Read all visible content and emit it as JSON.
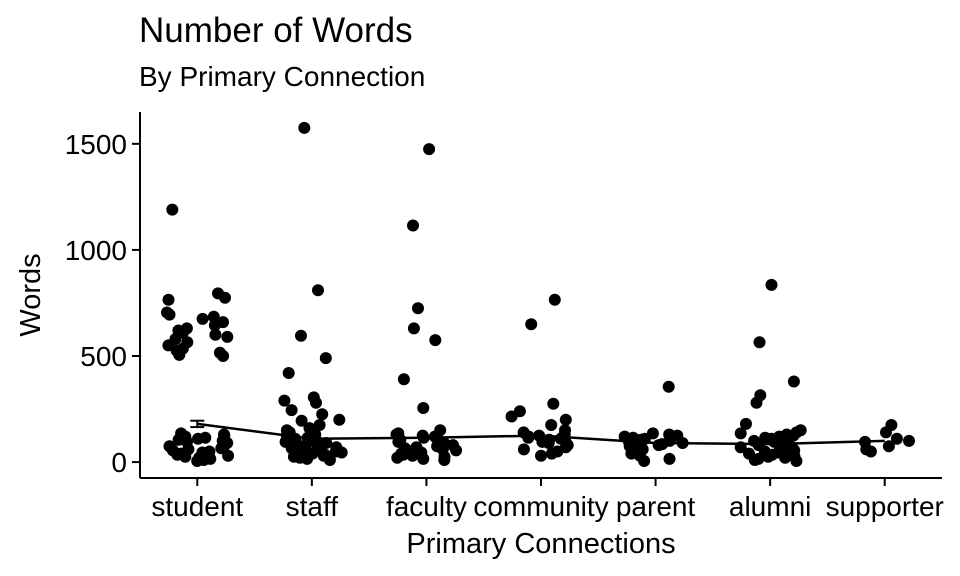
{
  "chart_data": {
    "type": "scatter",
    "title": "Number of Words",
    "subtitle": "By Primary Connection",
    "xlabel": "Primary Connections",
    "ylabel": "Words",
    "categories": [
      "student",
      "staff",
      "faculty",
      "community",
      "parent",
      "alumni",
      "supporter"
    ],
    "yticks": [
      0,
      500,
      1000,
      1500
    ],
    "ylim": [
      -75,
      1650
    ],
    "grid": false,
    "legend": "none",
    "mean_line": [
      180,
      110,
      115,
      125,
      90,
      85,
      100
    ],
    "mean_error": [
      15,
      0,
      0,
      0,
      0,
      0,
      0
    ],
    "points": {
      "student": [
        1190,
        795,
        775,
        765,
        705,
        695,
        685,
        675,
        660,
        645,
        630,
        620,
        610,
        600,
        590,
        580,
        565,
        550,
        535,
        525,
        515,
        505,
        500,
        135,
        130,
        125,
        120,
        115,
        110,
        105,
        100,
        95,
        90,
        85,
        80,
        75,
        70,
        65,
        60,
        55,
        50,
        45,
        40,
        35,
        30,
        25,
        20,
        15,
        10,
        5
      ],
      "staff": [
        1575,
        810,
        595,
        490,
        420,
        305,
        290,
        280,
        245,
        225,
        200,
        195,
        175,
        160,
        150,
        140,
        130,
        125,
        120,
        115,
        110,
        105,
        100,
        95,
        90,
        85,
        80,
        75,
        70,
        65,
        60,
        55,
        50,
        45,
        40,
        35,
        30,
        25,
        20,
        15,
        10
      ],
      "faculty": [
        1475,
        1115,
        725,
        630,
        575,
        390,
        255,
        150,
        135,
        130,
        125,
        120,
        115,
        110,
        105,
        100,
        95,
        90,
        85,
        80,
        75,
        70,
        65,
        60,
        55,
        50,
        45,
        40,
        35,
        30,
        25,
        20,
        15,
        10
      ],
      "community": [
        765,
        650,
        275,
        240,
        215,
        200,
        175,
        150,
        140,
        130,
        125,
        120,
        115,
        110,
        105,
        100,
        95,
        90,
        80,
        70,
        60,
        50,
        40,
        30
      ],
      "parent": [
        355,
        135,
        130,
        125,
        120,
        115,
        110,
        105,
        100,
        95,
        90,
        85,
        80,
        75,
        70,
        60,
        50,
        40,
        30,
        15,
        5
      ],
      "alumni": [
        835,
        565,
        380,
        315,
        280,
        180,
        150,
        140,
        135,
        130,
        125,
        120,
        115,
        110,
        105,
        100,
        95,
        90,
        85,
        80,
        75,
        70,
        65,
        60,
        55,
        50,
        45,
        40,
        35,
        30,
        25,
        20,
        15,
        10,
        5
      ],
      "supporter": [
        175,
        140,
        110,
        100,
        95,
        75,
        60,
        50
      ]
    }
  }
}
